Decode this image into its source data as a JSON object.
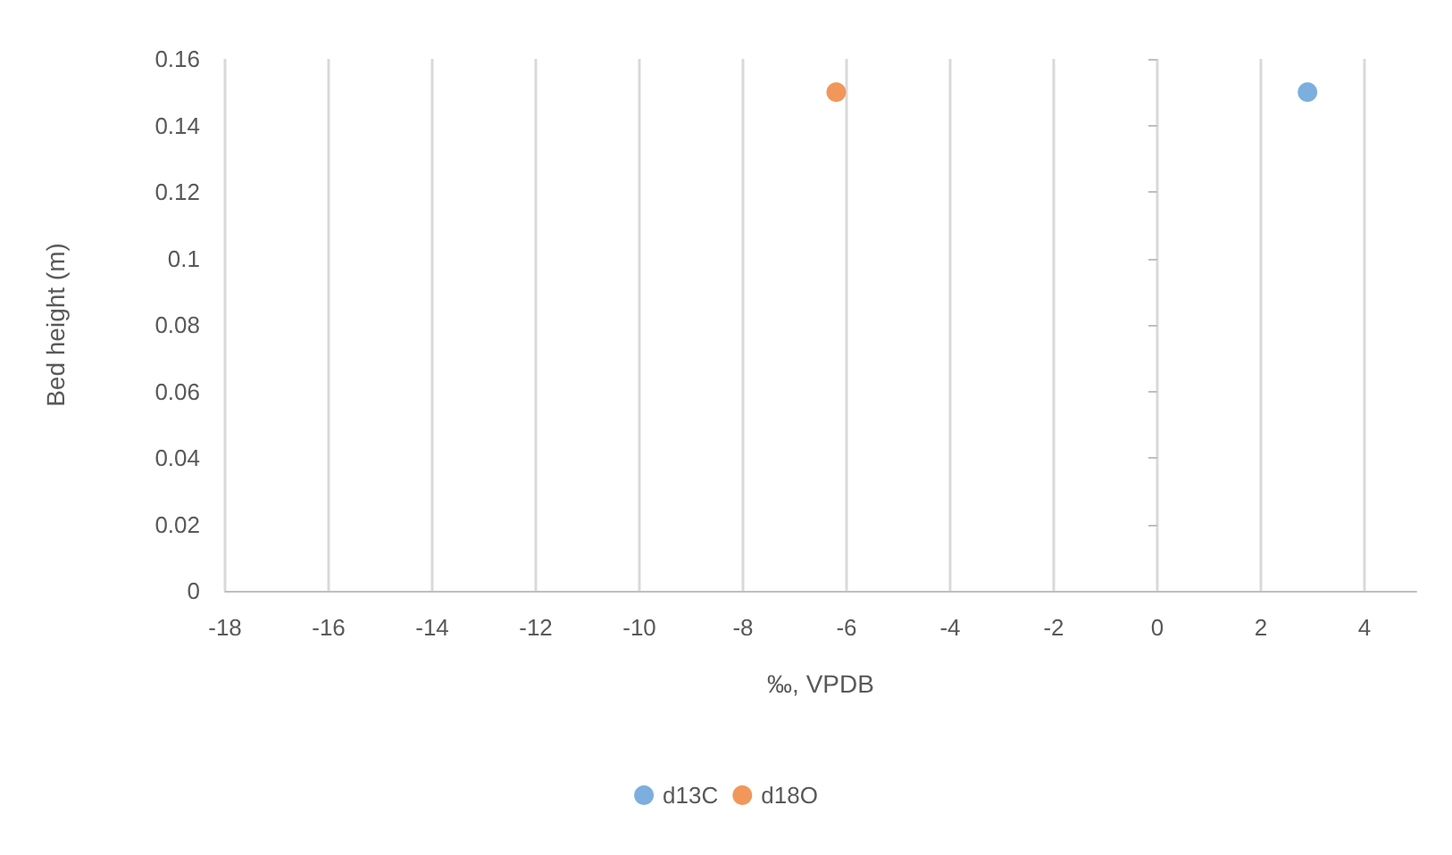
{
  "chart_data": {
    "type": "scatter",
    "xlabel": "‰, VPDB",
    "ylabel": "Bed height (m)",
    "series": [
      {
        "name": "d13C",
        "color": "#5b9bd5",
        "x": [
          2.9
        ],
        "values": [
          0.15
        ]
      },
      {
        "name": "d18O",
        "color": "#ed7d31",
        "x": [
          -6.2
        ],
        "values": [
          0.15
        ]
      }
    ],
    "xlim": [
      -18,
      5
    ],
    "xticks": [
      -18,
      -16,
      -14,
      -12,
      -10,
      -8,
      -6,
      -4,
      -2,
      0,
      2,
      4
    ],
    "ylim": [
      0,
      0.16
    ],
    "yticks": [
      0,
      0.02,
      0.04,
      0.06,
      0.08,
      0.1,
      0.12,
      0.14,
      0.16
    ],
    "grid": "x",
    "legend": "bottom",
    "marker": "circle"
  }
}
